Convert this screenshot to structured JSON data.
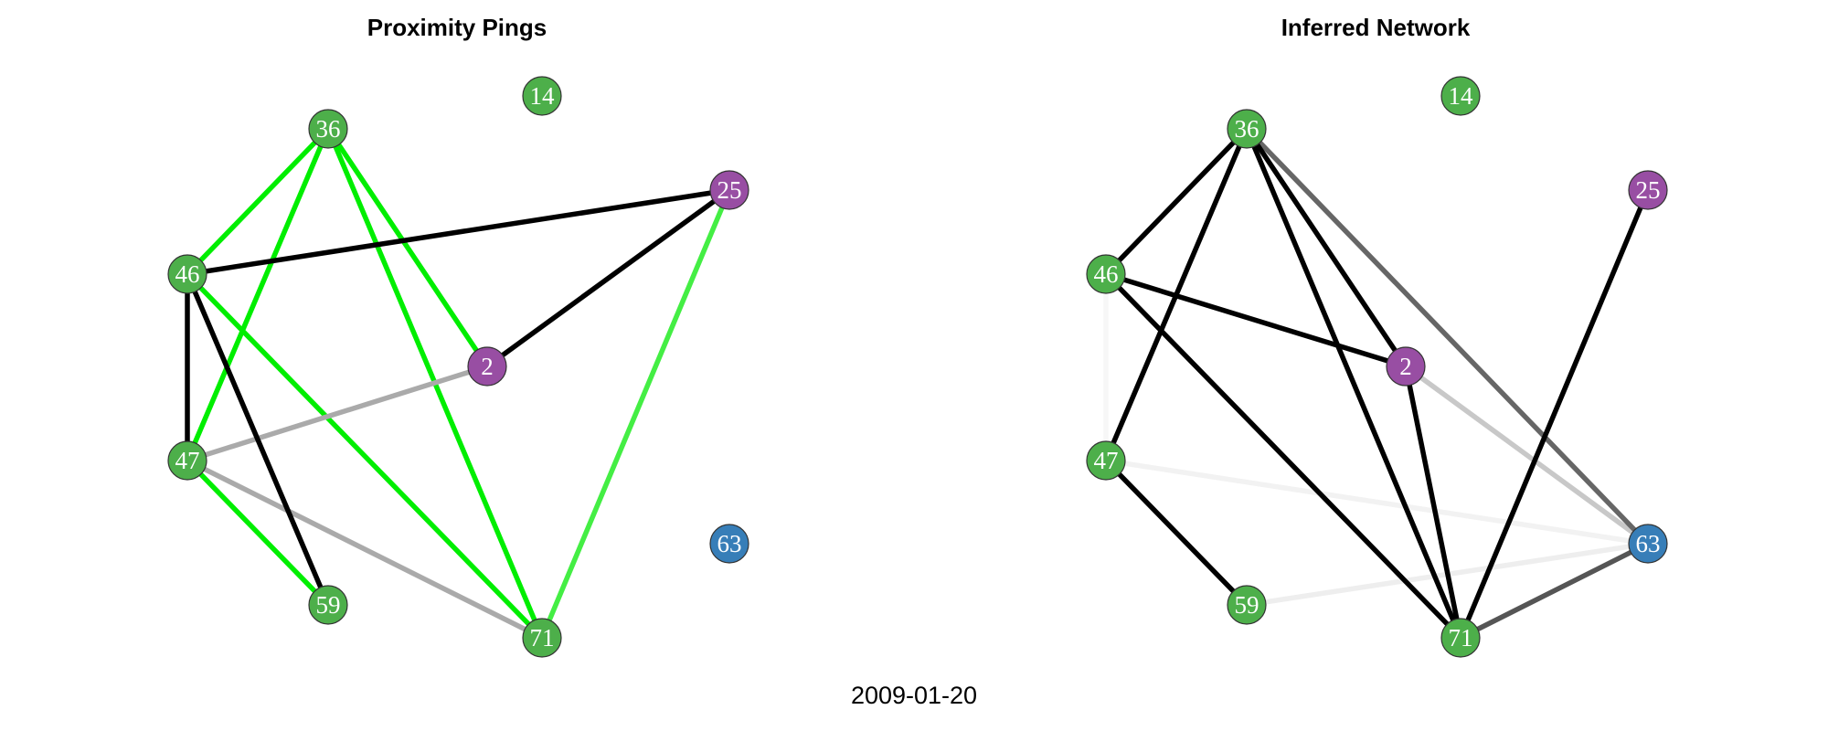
{
  "date": "2009-01-20",
  "colors": {
    "green_node": "#4DAF4A",
    "purple_node": "#984EA3",
    "blue_node": "#377EB8",
    "node_border": "#333333",
    "node_text": "#FFFFFF"
  },
  "nodes": [
    {
      "id": "14",
      "group": "green"
    },
    {
      "id": "36",
      "group": "green"
    },
    {
      "id": "25",
      "group": "purple"
    },
    {
      "id": "46",
      "group": "green"
    },
    {
      "id": "2",
      "group": "purple"
    },
    {
      "id": "47",
      "group": "green"
    },
    {
      "id": "63",
      "group": "blue"
    },
    {
      "id": "59",
      "group": "green"
    },
    {
      "id": "71",
      "group": "green"
    }
  ],
  "panels": [
    {
      "key": "proximity",
      "title": "Proximity Pings",
      "edges": [
        {
          "source": "36",
          "target": "46",
          "color": "#00EE00"
        },
        {
          "source": "36",
          "target": "47",
          "color": "#00EE00"
        },
        {
          "source": "36",
          "target": "2",
          "color": "#00EE00"
        },
        {
          "source": "36",
          "target": "71",
          "color": "#00EE00"
        },
        {
          "source": "46",
          "target": "71",
          "color": "#00EE00"
        },
        {
          "source": "47",
          "target": "59",
          "color": "#00EE00"
        },
        {
          "source": "25",
          "target": "71",
          "color": "#44EE44"
        },
        {
          "source": "47",
          "target": "2",
          "color": "#AAAAAA"
        },
        {
          "source": "47",
          "target": "71",
          "color": "#AAAAAA"
        },
        {
          "source": "46",
          "target": "25",
          "color": "#000000"
        },
        {
          "source": "2",
          "target": "25",
          "color": "#000000"
        },
        {
          "source": "46",
          "target": "47",
          "color": "#000000"
        },
        {
          "source": "46",
          "target": "59",
          "color": "#000000"
        }
      ]
    },
    {
      "key": "inferred",
      "title": "Inferred Network",
      "edges": [
        {
          "source": "46",
          "target": "47",
          "color": "#F7F7F7"
        },
        {
          "source": "47",
          "target": "63",
          "color": "#F2F2F2"
        },
        {
          "source": "59",
          "target": "63",
          "color": "#EEEEEE"
        },
        {
          "source": "2",
          "target": "63",
          "color": "#C8C8C8"
        },
        {
          "source": "36",
          "target": "63",
          "color": "#666666"
        },
        {
          "source": "71",
          "target": "63",
          "color": "#555555"
        },
        {
          "source": "36",
          "target": "46",
          "color": "#000000"
        },
        {
          "source": "36",
          "target": "47",
          "color": "#000000"
        },
        {
          "source": "36",
          "target": "2",
          "color": "#000000"
        },
        {
          "source": "36",
          "target": "71",
          "color": "#000000"
        },
        {
          "source": "46",
          "target": "2",
          "color": "#000000"
        },
        {
          "source": "46",
          "target": "71",
          "color": "#000000"
        },
        {
          "source": "2",
          "target": "71",
          "color": "#000000"
        },
        {
          "source": "25",
          "target": "71",
          "color": "#000000"
        },
        {
          "source": "47",
          "target": "59",
          "color": "#000000"
        }
      ]
    }
  ]
}
